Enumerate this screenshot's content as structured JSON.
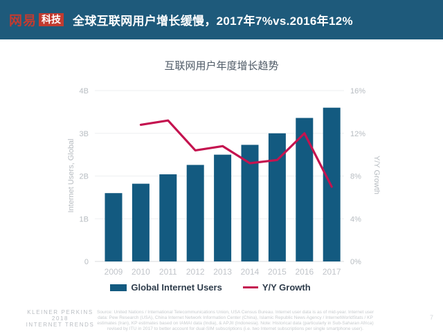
{
  "header": {
    "logo": {
      "wordmark": "网易",
      "badge": "科技"
    },
    "title": "全球互联网用户增长缓慢，2017年7%vs.2016年12%"
  },
  "chart_data": {
    "type": "bar",
    "title": "互联网用户年度增长趋势",
    "categories": [
      "2009",
      "2010",
      "2011",
      "2012",
      "2013",
      "2014",
      "2015",
      "2016",
      "2017"
    ],
    "series": [
      {
        "name": "Global Internet Users",
        "type": "bar",
        "axis": "left",
        "unit": "B",
        "color": "#135A80",
        "values": [
          1.6,
          1.82,
          2.04,
          2.26,
          2.5,
          2.73,
          3.0,
          3.36,
          3.6
        ]
      },
      {
        "name": "Y/Y Growth",
        "type": "line",
        "axis": "right",
        "unit": "%",
        "color": "#C4134F",
        "values": [
          null,
          12.8,
          13.2,
          10.4,
          10.8,
          9.2,
          9.5,
          12,
          7
        ]
      }
    ],
    "left_axis": {
      "label": "Internet Users, Global",
      "min": 0,
      "max": 4,
      "ticks": [
        "0",
        "1B",
        "2B",
        "3B",
        "4B"
      ]
    },
    "right_axis": {
      "label": "Y/Y Growth",
      "min": 0,
      "max": 16,
      "ticks": [
        "0%",
        "4%",
        "8%",
        "12%",
        "16%"
      ]
    },
    "grid": true,
    "legend_position": "bottom"
  },
  "legend": {
    "items": [
      {
        "label": "Global Internet Users",
        "color": "#135A80",
        "marker": "square"
      },
      {
        "label": "Y/Y Growth",
        "color": "#C4134F",
        "marker": "line"
      }
    ]
  },
  "footer": {
    "brand_lines": [
      "KLEINER PERKINS",
      "2018",
      "INTERNET TRENDS"
    ],
    "source_note": "Source: United Nations / International Telecommunications Union, USA Census Bureau. Internet user data is as of mid-year. Internet user data: Pew Research (USA), China Internet Network Information Center (China), Islamic Republic News Agency / InternetWorldStats / KP estimates (Iran), KP estimates based on IAMAI data (India), & APJII (Indonesia). Note: Historical data (particularly in Sub-Saharan Africa) revised by ITU in 2017 to better account for dual-SIM subscriptions (i.e. two Internet subscriptions per single smartphone user).",
    "page_number": "7"
  },
  "colors": {
    "header_bg": "#1E5A7B",
    "bar": "#135A80",
    "line": "#C4134F",
    "logo_red": "#C23B30",
    "axis_text": "#B7BCC1",
    "gridline": "#EDEFF1"
  }
}
